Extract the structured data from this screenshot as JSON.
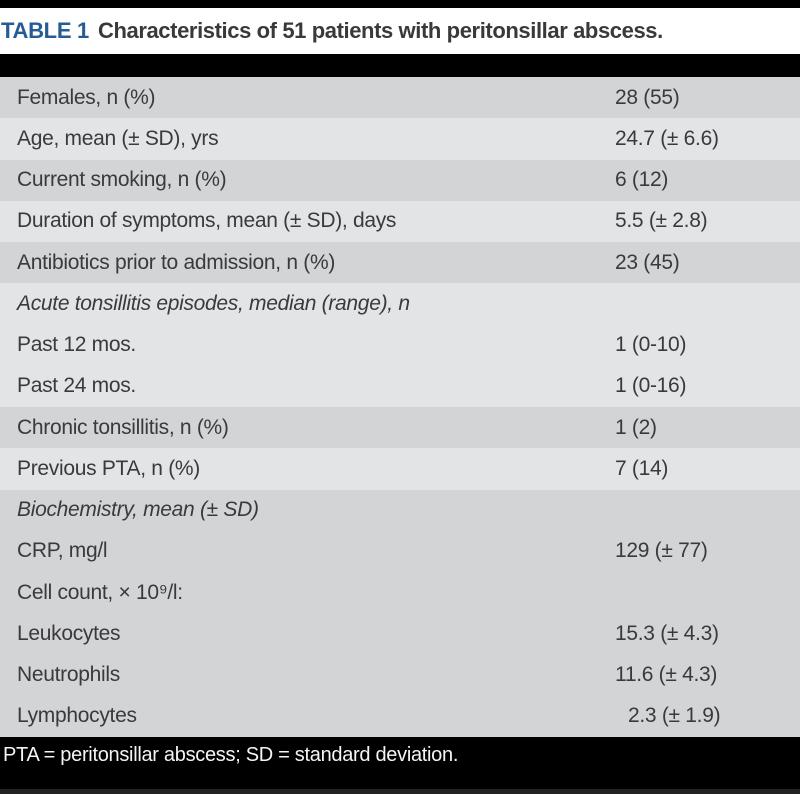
{
  "title": {
    "number": "TABLE 1",
    "text": "Characteristics of 51 patients with peritonsillar abscess."
  },
  "table": {
    "rows": [
      {
        "label": "Females, n (%)",
        "value": "28 (55)"
      },
      {
        "label": "Age, mean (± SD), yrs",
        "value": "24.7 (± 6.6)"
      },
      {
        "label": "Current smoking, n (%)",
        "value": "6 (12)"
      },
      {
        "label": "Duration of symptoms, mean (± SD), days",
        "value": "5.5 (± 2.8)"
      },
      {
        "label": "Antibiotics prior to admission, n (%)",
        "value": "23 (45)"
      },
      {
        "label": "Acute tonsillitis episodes, median (range), n",
        "value": ""
      },
      {
        "label": "Past 12 mos.",
        "value": "1 (0-10)"
      },
      {
        "label": "Past 24 mos.",
        "value": "1 (0-16)"
      },
      {
        "label": "Chronic tonsillitis, n (%)",
        "value": "1 (2)"
      },
      {
        "label": "Previous PTA, n (%)",
        "value": "7 (14)"
      },
      {
        "label": "Biochemistry, mean (± SD)",
        "value": ""
      },
      {
        "label": "CRP, mg/l",
        "value": "129 (± 77)"
      },
      {
        "label": "Cell count, × 10⁹/l:",
        "value": ""
      },
      {
        "label": "Leukocytes",
        "value": "15.3 (± 4.3)"
      },
      {
        "label": "Neutrophils",
        "value": "11.6 (± 4.3)"
      },
      {
        "label": "Lymphocytes",
        "value": "2.3 (± 1.9)"
      }
    ]
  },
  "footnote": "PTA = peritonsillar abscess; SD = standard deviation.",
  "colors": {
    "accent_blue": "#255c93",
    "row_dark": "#d3d4d6",
    "row_light": "#e3e4e6",
    "body_text": "#3a3a3c",
    "rule_black": "#000000",
    "footnote_text": "#f4f4f4"
  }
}
